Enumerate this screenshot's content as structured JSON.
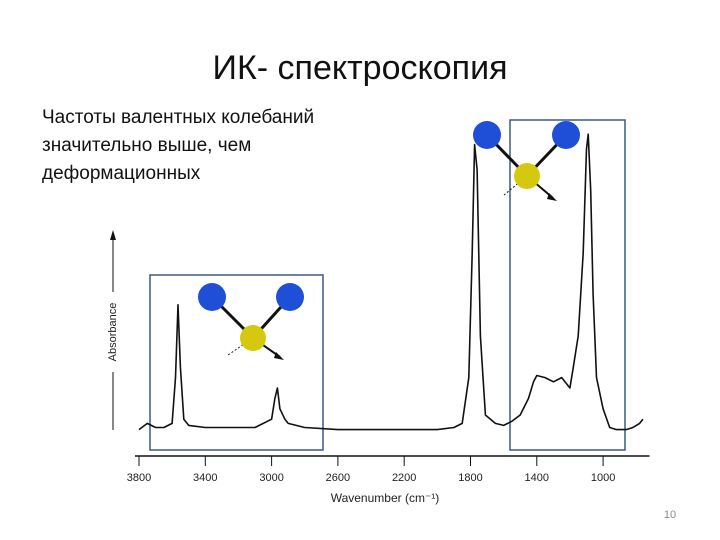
{
  "slide": {
    "title": "ИК- спектроскопия",
    "body": [
      "Частоты валентных колебаний",
      "значительно выше, чем",
      "деформационных"
    ],
    "page_number": "10"
  },
  "chart_data": {
    "type": "line",
    "color": "#111111",
    "x_label": "Wavenumber (cm⁻¹)",
    "y_label": "Absorbance",
    "x": [
      3800,
      3750,
      3700,
      3650,
      3600,
      3580,
      3565,
      3550,
      3530,
      3500,
      3400,
      3300,
      3100,
      3000,
      2980,
      2965,
      2950,
      2920,
      2900,
      2800,
      2600,
      2400,
      2200,
      2000,
      1900,
      1850,
      1810,
      1790,
      1775,
      1760,
      1740,
      1710,
      1650,
      1600,
      1550,
      1500,
      1450,
      1420,
      1400,
      1350,
      1300,
      1250,
      1200,
      1180,
      1150,
      1120,
      1100,
      1090,
      1075,
      1060,
      1040,
      1000,
      960,
      920,
      860,
      820,
      780,
      760
    ],
    "values": [
      0.05,
      0.08,
      0.06,
      0.06,
      0.08,
      0.3,
      0.65,
      0.35,
      0.1,
      0.07,
      0.06,
      0.06,
      0.06,
      0.1,
      0.2,
      0.25,
      0.15,
      0.1,
      0.08,
      0.06,
      0.05,
      0.05,
      0.05,
      0.05,
      0.06,
      0.08,
      0.3,
      0.9,
      1.42,
      1.3,
      0.5,
      0.12,
      0.08,
      0.07,
      0.09,
      0.12,
      0.2,
      0.28,
      0.31,
      0.3,
      0.28,
      0.3,
      0.25,
      0.35,
      0.5,
      0.9,
      1.4,
      1.47,
      1.2,
      0.7,
      0.3,
      0.15,
      0.06,
      0.05,
      0.05,
      0.06,
      0.08,
      0.1
    ],
    "xlim": [
      3800,
      720
    ],
    "xticks": [
      3800,
      3400,
      3000,
      2600,
      2200,
      1800,
      1400,
      1000
    ],
    "ylim": [
      0,
      1.5
    ]
  }
}
